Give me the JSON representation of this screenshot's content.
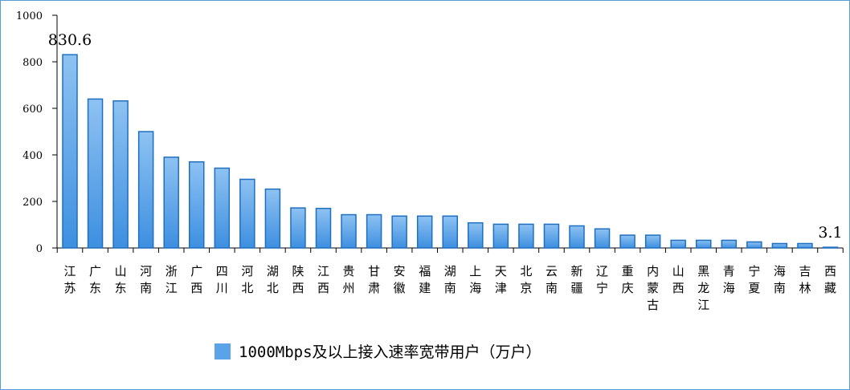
{
  "chart_data": {
    "type": "bar",
    "categories": [
      "江苏",
      "广东",
      "山东",
      "河南",
      "浙江",
      "广西",
      "四川",
      "河北",
      "湖北",
      "陕西",
      "江西",
      "贵州",
      "甘肃",
      "安徽",
      "福建",
      "湖南",
      "上海",
      "天津",
      "北京",
      "云南",
      "新疆",
      "辽宁",
      "重庆",
      "内蒙古",
      "山西",
      "黑龙江",
      "青海",
      "宁夏",
      "海南",
      "吉林",
      "西藏"
    ],
    "series": [
      {
        "name": "1000Mbps及以上接入速率宽带用户（万户）",
        "values": [
          830.6,
          640,
          632,
          500,
          390,
          370,
          343,
          295,
          253,
          172,
          170,
          143,
          143,
          137,
          137,
          137,
          108,
          102,
          102,
          102,
          95,
          82,
          55,
          55,
          33,
          33,
          33,
          26,
          19,
          19,
          3.1
        ]
      }
    ],
    "data_labels": [
      {
        "index": 0,
        "text": "830.6"
      },
      {
        "index": 30,
        "text": "3.1"
      }
    ],
    "ylim": [
      0,
      1000
    ],
    "yticks": [
      "0",
      "200",
      "400",
      "600",
      "800",
      "1000"
    ],
    "grid": false,
    "legend_position": "bottom",
    "colors": {
      "bar_top": "#8ec2f2",
      "bar_bottom": "#3d8fe0",
      "bar_edge": "#1e6fc0",
      "axis": "#000000",
      "legend_swatch": "#5aa3e8",
      "frame": "#5b9bd5"
    }
  }
}
